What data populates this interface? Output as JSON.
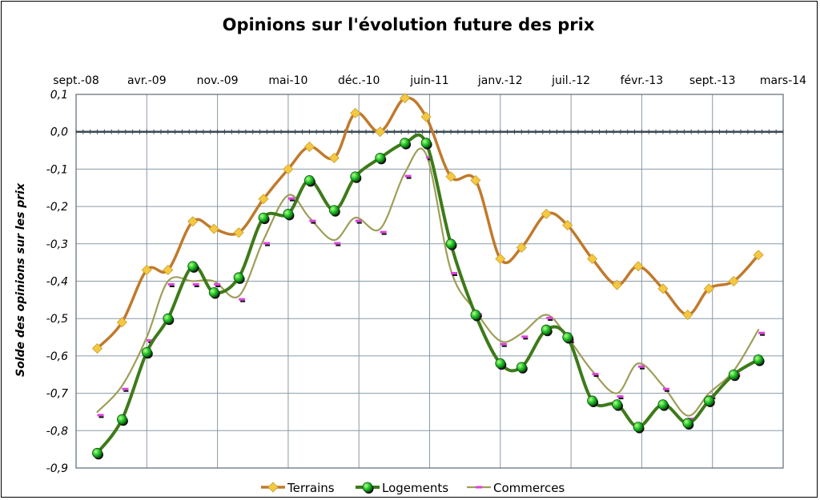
{
  "chart_data": {
    "type": "line",
    "title": "Opinions sur l'évolution future des prix",
    "ylabel": "Solde des opinions sur les prix",
    "xlabel": "",
    "ylim": [
      -0.9,
      0.1
    ],
    "yticks": [
      "0,1",
      "0,0",
      "-0,1",
      "-0,2",
      "-0,3",
      "-0,4",
      "-0,5",
      "-0,6",
      "-0,7",
      "-0,8",
      "-0,9"
    ],
    "yticks_values": [
      0.1,
      0.0,
      -0.1,
      -0.2,
      -0.3,
      -0.4,
      -0.5,
      -0.6,
      -0.7,
      -0.8,
      -0.9
    ],
    "xticks": [
      "sept.-08",
      "avr.-09",
      "nov.-09",
      "mai-10",
      "déc.-10",
      "juin-11",
      "janv.-12",
      "juil.-12",
      "févr.-13",
      "sept.-13",
      "mars-14"
    ],
    "x_axis_position": "top",
    "grid": true,
    "legend_position": "bottom",
    "colors": {
      "terrains_line": "#c07a2c",
      "terrains_marker": "#f5c842",
      "logements_line": "#3d7a19",
      "logements_marker": "#22c52a",
      "commerces_line": "#9e9e5a",
      "commerces_marker": "#e040e0"
    },
    "series": [
      {
        "name": "Terrains",
        "values": [
          -0.58,
          -0.51,
          -0.37,
          -0.37,
          -0.24,
          -0.26,
          -0.27,
          -0.18,
          -0.1,
          -0.04,
          -0.07,
          0.05,
          0.0,
          0.09,
          0.04,
          -0.12,
          -0.13,
          -0.34,
          -0.31,
          -0.22,
          -0.25,
          -0.34,
          -0.41,
          -0.36,
          -0.42,
          -0.49,
          -0.42,
          -0.4,
          -0.33
        ],
        "positions": [
          0.6,
          1.3,
          2.0,
          2.6,
          3.3,
          3.9,
          4.6,
          5.3,
          6.0,
          6.6,
          7.3,
          7.9,
          8.6,
          9.3,
          9.9,
          10.6,
          11.3,
          12.0,
          12.6,
          13.3,
          13.9,
          14.6,
          15.3,
          15.9,
          16.6,
          17.3,
          17.9,
          18.6,
          19.3
        ]
      },
      {
        "name": "Logements",
        "values": [
          -0.86,
          -0.77,
          -0.59,
          -0.5,
          -0.36,
          -0.43,
          -0.39,
          -0.23,
          -0.22,
          -0.13,
          -0.21,
          -0.12,
          -0.07,
          -0.03,
          -0.03,
          -0.3,
          -0.49,
          -0.62,
          -0.63,
          -0.53,
          -0.55,
          -0.72,
          -0.73,
          -0.79,
          -0.73,
          -0.78,
          -0.72,
          -0.65,
          -0.61
        ],
        "positions": [
          0.6,
          1.3,
          2.0,
          2.6,
          3.3,
          3.9,
          4.6,
          5.3,
          6.0,
          6.6,
          7.3,
          7.9,
          8.6,
          9.3,
          9.9,
          10.6,
          11.3,
          12.0,
          12.6,
          13.3,
          13.9,
          14.6,
          15.3,
          15.9,
          16.6,
          17.3,
          17.9,
          18.6,
          19.3
        ]
      },
      {
        "name": "Commerces",
        "values": [
          -0.75,
          -0.68,
          -0.55,
          -0.4,
          -0.4,
          -0.4,
          -0.44,
          -0.29,
          -0.17,
          -0.23,
          -0.29,
          -0.23,
          -0.26,
          -0.11,
          -0.06,
          -0.37,
          -0.48,
          -0.56,
          -0.54,
          -0.49,
          -0.55,
          -0.64,
          -0.7,
          -0.62,
          -0.68,
          -0.76,
          -0.7,
          -0.64,
          -0.53
        ],
        "positions": [
          0.6,
          1.3,
          2.0,
          2.6,
          3.3,
          3.9,
          4.6,
          5.3,
          6.0,
          6.6,
          7.3,
          7.9,
          8.6,
          9.3,
          9.9,
          10.6,
          11.3,
          12.0,
          12.6,
          13.3,
          13.9,
          14.6,
          15.3,
          15.9,
          16.6,
          17.3,
          17.9,
          18.6,
          19.3
        ]
      }
    ]
  }
}
